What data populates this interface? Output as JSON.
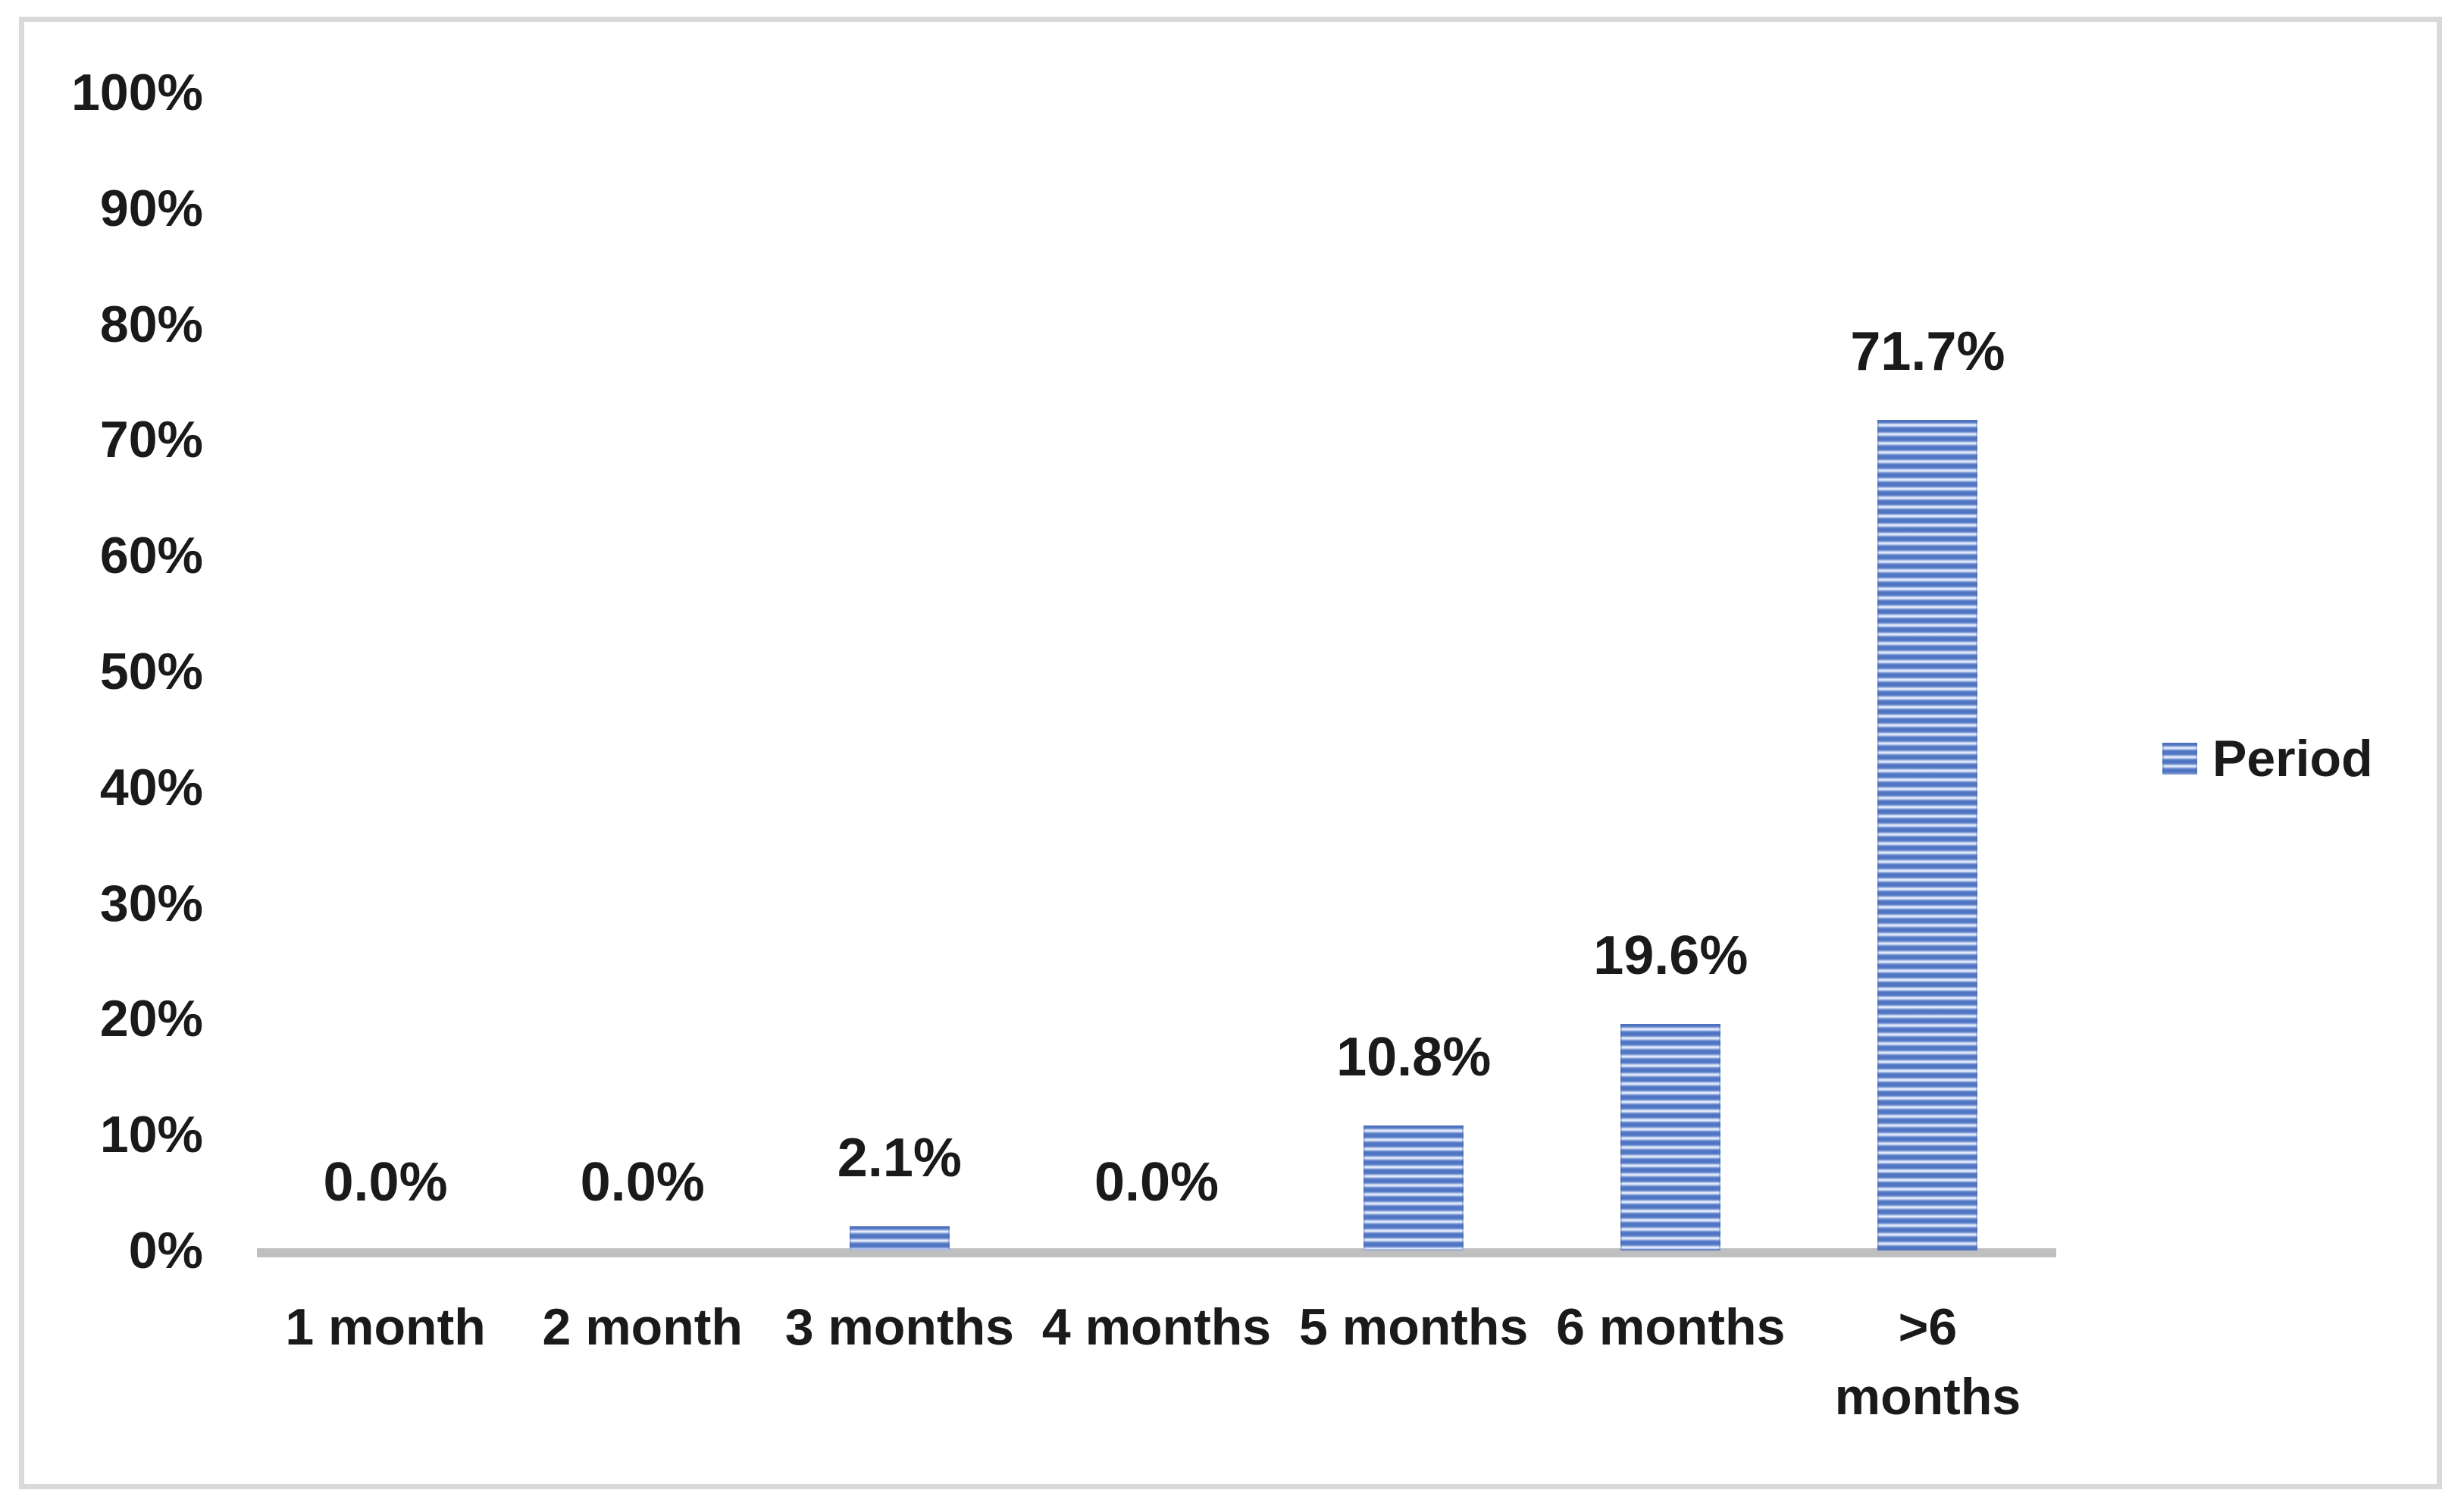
{
  "figure": {
    "background_color": "#FFFFFF",
    "frame_border_color": "#D9D9D9"
  },
  "chart_data": {
    "type": "bar",
    "title": "",
    "categories": [
      "1 month",
      "2 month",
      "3 months",
      "4 months",
      "5 months",
      "6 months",
      ">6 months"
    ],
    "series": [
      {
        "name": "Period",
        "values": [
          0.0,
          0.0,
          2.1,
          0.0,
          10.8,
          19.6,
          71.7
        ]
      }
    ],
    "data_labels": [
      "0.0%",
      "0.0%",
      "2.1%",
      "0.0%",
      "10.8%",
      "19.6%",
      "71.7%"
    ],
    "xtick_lines": [
      [
        "1 month"
      ],
      [
        "2 month"
      ],
      [
        "3 months"
      ],
      [
        "4 months"
      ],
      [
        "5 months"
      ],
      [
        "6 months"
      ],
      [
        ">6",
        "months"
      ]
    ],
    "yticks": [
      {
        "label": "100%",
        "value": 100
      },
      {
        "label": "90%",
        "value": 90
      },
      {
        "label": "80%",
        "value": 80
      },
      {
        "label": "70%",
        "value": 70
      },
      {
        "label": "60%",
        "value": 60
      },
      {
        "label": "50%",
        "value": 50
      },
      {
        "label": "40%",
        "value": 40
      },
      {
        "label": "30%",
        "value": 30
      },
      {
        "label": "20%",
        "value": 20
      },
      {
        "label": "10%",
        "value": 10
      },
      {
        "label": "0%",
        "value": 0
      }
    ],
    "xlabel": "",
    "ylabel": "",
    "ylim": [
      0,
      100
    ],
    "grid": false,
    "legend": {
      "position": "right",
      "entries": [
        "Period"
      ]
    },
    "colors": {
      "bar_stripe_dark": "#5075C3",
      "bar_stripe_mid": "#9AB1E2",
      "bar_stripe_light": "#E6EEFB",
      "axis_line": "#BFBFBF",
      "text": "#1A1A1A",
      "frame_border": "#D9D9D9"
    }
  }
}
